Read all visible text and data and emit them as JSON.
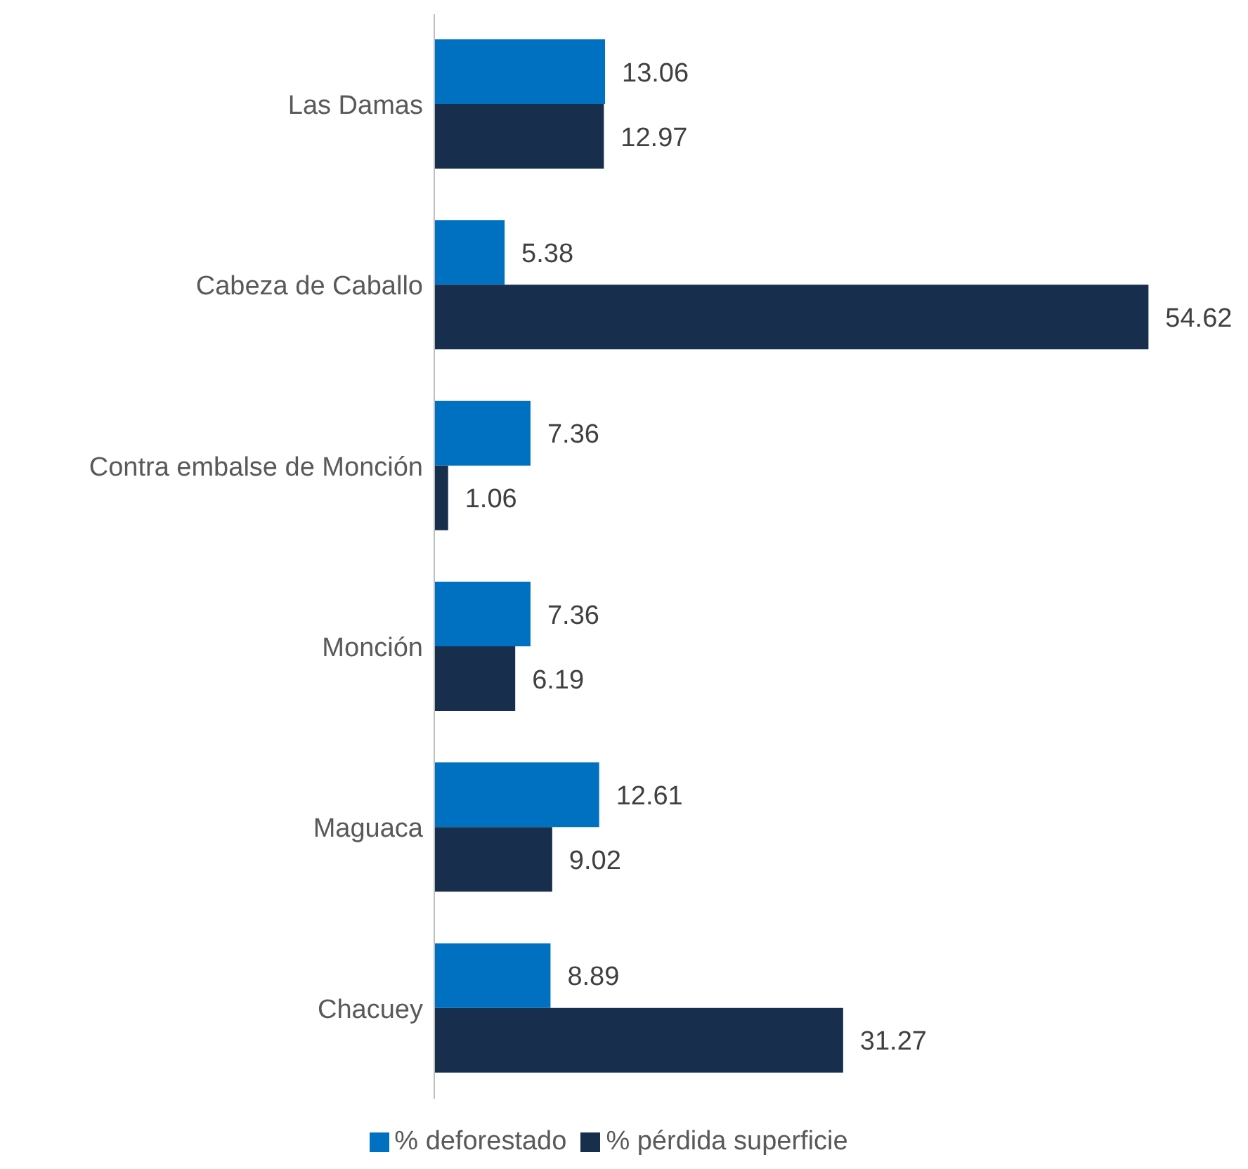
{
  "chart_data": {
    "type": "bar",
    "orientation": "horizontal",
    "categories": [
      "Las Damas",
      "Cabeza de Caballo",
      "Contra embalse de Monción",
      "Monción",
      "Maguaca",
      "Chacuey"
    ],
    "series": [
      {
        "name": "% deforestado",
        "color": "#0070c0",
        "values": [
          13.06,
          5.38,
          7.36,
          7.36,
          12.61,
          8.89
        ]
      },
      {
        "name": "% pérdida superficie",
        "color": "#172f4d",
        "values": [
          12.97,
          54.62,
          1.06,
          6.19,
          9.02,
          31.27
        ]
      }
    ],
    "data_labels": true,
    "legend": "bottom",
    "tick_labels": "y"
  }
}
